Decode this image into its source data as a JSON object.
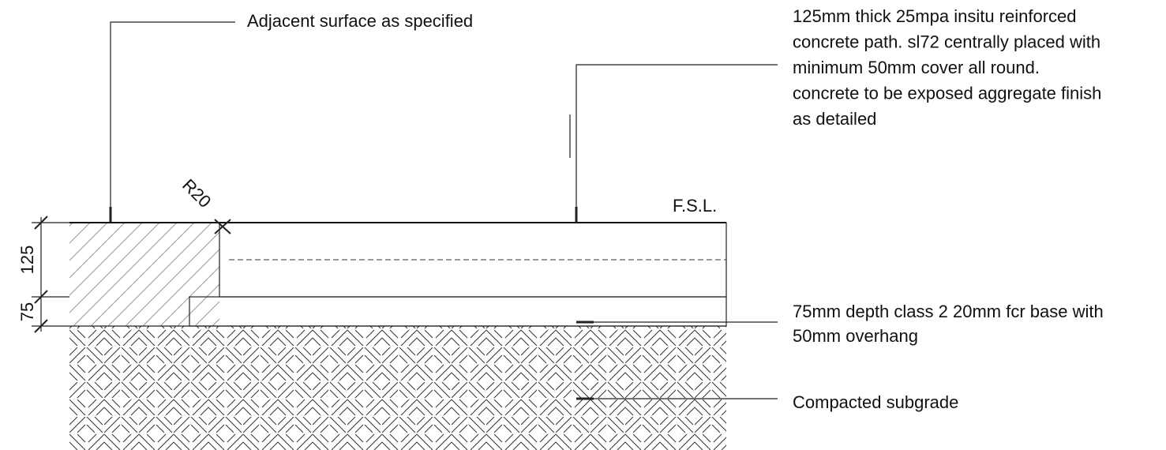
{
  "labels": {
    "adjacent": "Adjacent surface as specified",
    "concrete": [
      "125mm thick 25mpa insitu reinforced",
      "concrete path. sl72 centrally placed with",
      "minimum 50mm cover all round.",
      "concrete to be exposed aggregate finish",
      "as detailed"
    ],
    "radius": "R20",
    "fsl": "F.S.L.",
    "dim_concrete": "125",
    "dim_base": "75",
    "base": [
      "75mm depth class 2 20mm fcr base with",
      "50mm overhang"
    ],
    "subgrade": "Compacted subgrade"
  }
}
